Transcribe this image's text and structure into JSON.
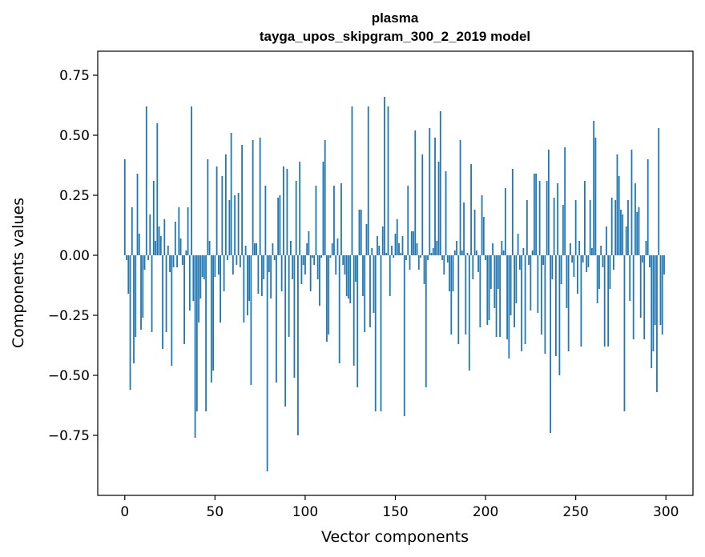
{
  "chart_data": {
    "type": "bar",
    "title": "plasma",
    "subtitle": "tayga_upos_skipgram_300_2_2019 model",
    "xlabel": "Vector components",
    "ylabel": "Components values",
    "xlim": [
      -15,
      315
    ],
    "ylim": [
      -1.0,
      0.85
    ],
    "xticks": [
      0,
      50,
      100,
      150,
      200,
      250,
      300
    ],
    "xtick_labels": [
      "0",
      "50",
      "100",
      "150",
      "200",
      "250",
      "300"
    ],
    "yticks": [
      -0.75,
      -0.5,
      -0.25,
      0.0,
      0.25,
      0.5,
      0.75
    ],
    "ytick_labels": [
      "−0.75",
      "−0.50",
      "−0.25",
      "0.00",
      "0.25",
      "0.50",
      "0.75"
    ],
    "grid": false,
    "bar_color": "#1f77b4",
    "values": [
      0.4,
      -0.02,
      -0.16,
      -0.56,
      0.2,
      -0.45,
      -0.34,
      0.34,
      0.09,
      -0.31,
      -0.26,
      -0.06,
      0.62,
      -0.02,
      0.17,
      -0.32,
      0.31,
      0.06,
      0.55,
      0.12,
      0.08,
      -0.39,
      0.15,
      -0.32,
      0.04,
      -0.07,
      -0.46,
      -0.05,
      0.14,
      -0.05,
      0.2,
      0.07,
      -0.04,
      -0.37,
      0.02,
      0.2,
      -0.23,
      0.62,
      -0.19,
      -0.76,
      -0.65,
      -0.28,
      -0.18,
      -0.09,
      -0.1,
      -0.65,
      0.4,
      0.06,
      -0.53,
      -0.48,
      -0.09,
      0.37,
      -0.08,
      -0.28,
      0.33,
      -0.15,
      0.42,
      -0.02,
      0.23,
      0.51,
      -0.08,
      0.25,
      -0.04,
      0.26,
      -0.05,
      0.46,
      -0.28,
      0.04,
      -0.25,
      -0.19,
      -0.54,
      0.48,
      0.05,
      0.05,
      -0.16,
      0.49,
      -0.17,
      -0.1,
      0.29,
      -0.9,
      -0.07,
      -0.18,
      0.05,
      -0.02,
      -0.53,
      0.24,
      0.25,
      -0.15,
      0.37,
      -0.63,
      0.36,
      -0.34,
      0.06,
      -0.1,
      -0.51,
      0.31,
      -0.75,
      0.39,
      -0.12,
      -0.04,
      -0.08,
      0.05,
      0.1,
      -0.15,
      -0.01,
      -0.04,
      0.29,
      -0.1,
      -0.21,
      -0.01,
      0.39,
      0.48,
      -0.36,
      -0.33,
      -0.01,
      0.05,
      0.29,
      -0.08,
      0.07,
      -0.45,
      0.3,
      -0.04,
      -0.08,
      -0.17,
      -0.18,
      -0.2,
      0.62,
      -0.46,
      -0.11,
      -0.55,
      0.19,
      0.19,
      -0.17,
      -0.32,
      0.13,
      0.62,
      -0.3,
      0.03,
      -0.24,
      -0.65,
      0.08,
      0.04,
      -0.65,
      0.12,
      0.66,
      0.01,
      0.62,
      -0.17,
      0.04,
      -0.01,
      0.09,
      0.15,
      0.05,
      0.01,
      0.08,
      -0.67,
      -0.02,
      0.29,
      -0.06,
      0.1,
      0.1,
      0.52,
      0.05,
      -0.06,
      -0.01,
      0.42,
      -0.12,
      -0.55,
      -0.02,
      0.53,
      0.01,
      0.03,
      0.49,
      0.06,
      0.39,
      0.6,
      -0.02,
      -0.08,
      0.35,
      -0.03,
      -0.15,
      -0.33,
      -0.15,
      0.02,
      0.06,
      -0.37,
      0.48,
      0.02,
      0.22,
      -0.33,
      0.01,
      -0.48,
      0.38,
      -0.1,
      0.19,
      0.02,
      -0.07,
      -0.3,
      0.25,
      0.16,
      -0.02,
      -0.29,
      -0.27,
      -0.14,
      0.05,
      -0.22,
      -0.34,
      -0.14,
      -0.34,
      0.06,
      0.02,
      0.28,
      -0.35,
      -0.43,
      -0.25,
      0.36,
      -0.3,
      -0.2,
      0.09,
      -0.06,
      -0.4,
      0.03,
      -0.37,
      0.23,
      -0.04,
      -0.23,
      0.02,
      0.34,
      0.34,
      -0.24,
      0.31,
      -0.33,
      -0.04,
      -0.41,
      0.31,
      0.44,
      -0.74,
      -0.1,
      0.24,
      -0.42,
      0.3,
      -0.5,
      -0.12,
      0.21,
      0.45,
      -0.22,
      -0.4,
      0.05,
      -0.03,
      -0.09,
      0.23,
      -0.16,
      0.06,
      -0.38,
      -0.03,
      0.31,
      -0.07,
      -0.05,
      0.23,
      0.03,
      0.56,
      0.49,
      -0.2,
      -0.14,
      0.04,
      -0.05,
      -0.38,
      0.12,
      -0.38,
      -0.14,
      0.24,
      -0.06,
      0.23,
      0.42,
      0.33,
      0.19,
      0.17,
      -0.65,
      0.12,
      0.23,
      -0.19,
      0.44,
      -0.35,
      0.3,
      0.18,
      0.2,
      -0.26,
      -0.03,
      -0.35,
      0.06,
      0.4,
      -0.05,
      -0.47,
      -0.4,
      -0.29,
      -0.57,
      0.53,
      -0.29,
      -0.33,
      -0.08
    ]
  }
}
